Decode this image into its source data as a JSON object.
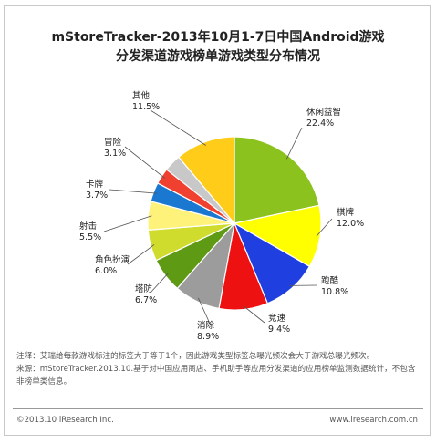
{
  "header": {
    "title_line1": "mStoreTracker-2013年10月1-7日中国Android游戏",
    "title_line2": "分发渠道游戏榜单游戏类型分布情况"
  },
  "chart_data": {
    "type": "pie",
    "title": "mStoreTracker-2013年10月1-7日中国Android游戏 分发渠道游戏榜单游戏类型分布情况",
    "slices": [
      {
        "label": "休闲益智",
        "value": 22.4,
        "value_label": "22.4%",
        "color": "#8cc21e"
      },
      {
        "label": "棋牌",
        "value": 12.0,
        "value_label": "12.0%",
        "color": "#ffff00"
      },
      {
        "label": "跑酷",
        "value": 10.8,
        "value_label": "10.8%",
        "color": "#1f3fe0"
      },
      {
        "label": "竞速",
        "value": 9.4,
        "value_label": "9.4%",
        "color": "#ee1111"
      },
      {
        "label": "消除",
        "value": 8.9,
        "value_label": "8.9%",
        "color": "#9c9c9c"
      },
      {
        "label": "塔防",
        "value": 6.7,
        "value_label": "6.7%",
        "color": "#5e9a14"
      },
      {
        "label": "角色扮演",
        "value": 6.0,
        "value_label": "6.0%",
        "color": "#cfdc2e"
      },
      {
        "label": "射击",
        "value": 5.5,
        "value_label": "5.5%",
        "color": "#fff27a"
      },
      {
        "label": "卡牌",
        "value": 3.7,
        "value_label": "3.7%",
        "color": "#1a78d0"
      },
      {
        "label": "冒险",
        "value": 3.1,
        "value_label": "3.1%",
        "color": "#f04030"
      },
      {
        "label": "",
        "value": 3.3,
        "value_label": "",
        "color": "#c8c8c8"
      },
      {
        "label": "其他",
        "value": 11.5,
        "value_label": "11.5%",
        "color": "#ffcc1a"
      }
    ]
  },
  "footer": {
    "note": "注释：艾瑞给每款游戏标注的标签大于等于1个，因此游戏类型标签总曝光频次会大于游戏总曝光频次。",
    "source": "来源：mStoreTracker.2013.10.基于对中国应用商店、手机助手等应用分发渠道的应用榜单监测数据统计，不包含非榜单类信息。",
    "copyright": "©2013.10 iResearch Inc.",
    "website": "www.iresearch.com.cn"
  }
}
